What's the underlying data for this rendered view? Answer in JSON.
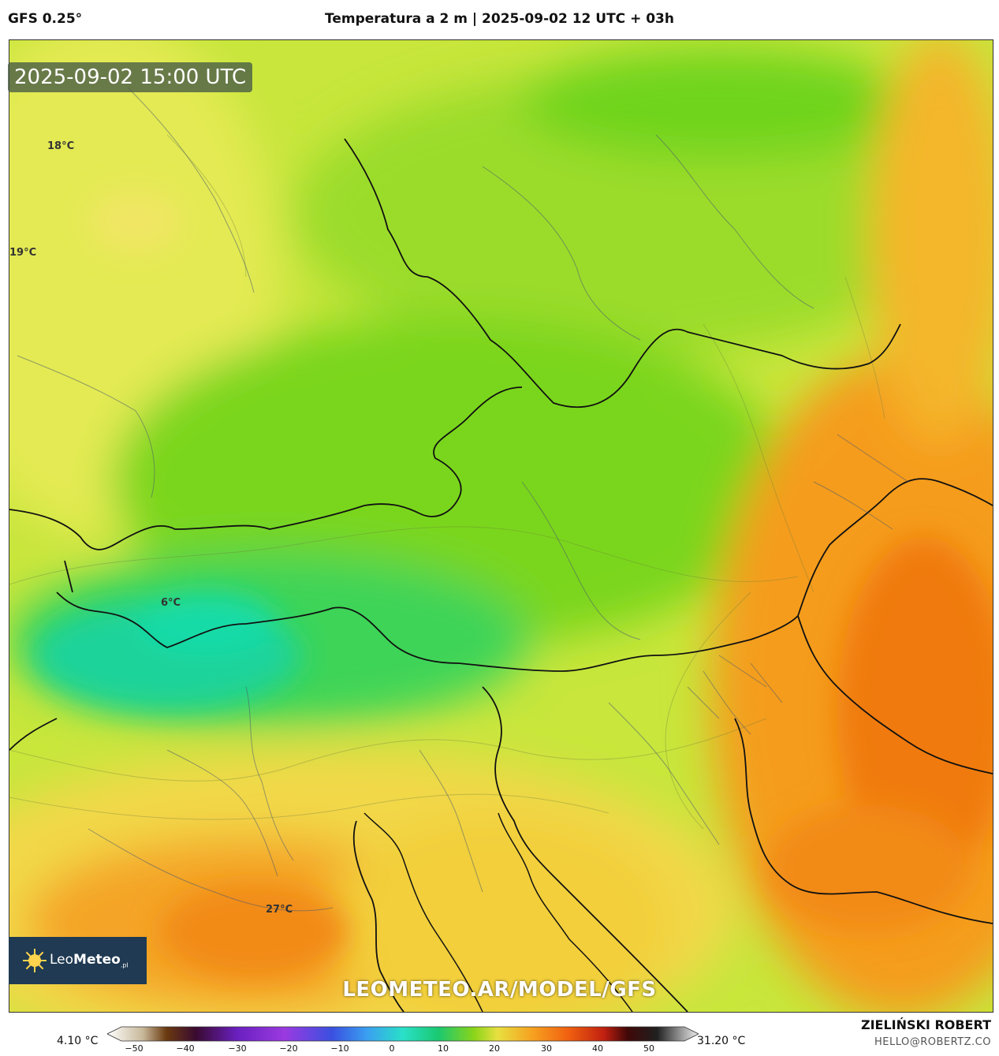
{
  "header": {
    "model": "GFS 0.25°",
    "title": "Temperatura a 2 m | 2025-09-02 12 UTC + 03h"
  },
  "timestamp": "2025-09-02 15:00 UTC",
  "map_labels": [
    {
      "id": "label-18",
      "text": "18°C"
    },
    {
      "id": "label-19",
      "text": "19°C"
    },
    {
      "id": "label-6",
      "text": "6°C"
    },
    {
      "id": "label-27",
      "text": "27°C"
    }
  ],
  "logo": {
    "brand_light": "Leo",
    "brand_bold": "Meteo",
    "suffix": ".pl"
  },
  "watermark": "LEOMETEO.AR/MODEL/GFS",
  "colorbar": {
    "min_label": "4.10 °C",
    "max_label": "31.20 °C",
    "ticks": [
      "−50",
      "−40",
      "−30",
      "−20",
      "−10",
      "0",
      "10",
      "20",
      "30",
      "40",
      "50"
    ]
  },
  "footer": {
    "author": "ZIELIŃSKI ROBERT",
    "email": "HELLO@ROBERTZ.CO"
  },
  "colors": {
    "cold_teal": "#19d49a",
    "green": "#6fd41c",
    "yellow_green": "#c3e63a",
    "yellow": "#f2e35a",
    "orange": "#f7a21e",
    "deep_orange": "#f07a10"
  }
}
